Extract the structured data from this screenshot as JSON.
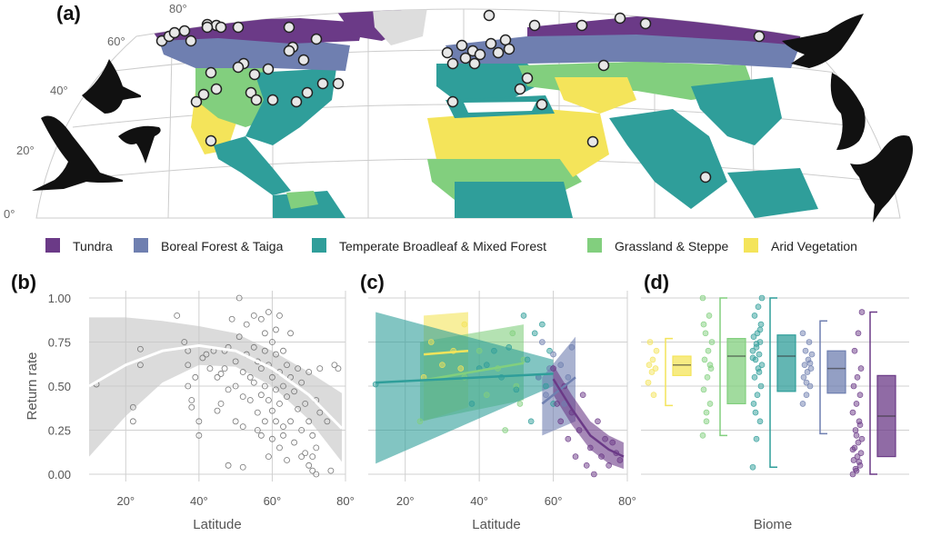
{
  "panels": {
    "a": "(a)",
    "b": "(b)",
    "c": "(c)",
    "d": "(d)"
  },
  "legend": [
    {
      "label": "Tundra",
      "color": "#6b3a87"
    },
    {
      "label": "Boreal Forest & Taiga",
      "color": "#6f7fb0"
    },
    {
      "label": "Temperate Broadleaf & Mixed Forest",
      "color": "#2f9e9a"
    },
    {
      "label": "Grassland & Steppe",
      "color": "#82cf7e"
    },
    {
      "label": "Arid Vegetation",
      "color": "#f4e45a"
    }
  ],
  "map_lat_labels": [
    "80°",
    "60°",
    "40°",
    "20°",
    "0°"
  ],
  "icons": [
    "curlew-silhouette-icon",
    "godwit-silhouette-icon",
    "flying-bird-icon",
    "stilt-silhouette-icon"
  ],
  "chart_data": [
    {
      "panel": "b",
      "type": "scatter",
      "xlabel": "Latitude",
      "ylabel": "Return rate",
      "xlim": [
        10,
        80
      ],
      "ylim": [
        0,
        1
      ],
      "xticks": [
        "20°",
        "40°",
        "60°",
        "80°"
      ],
      "xtick_values": [
        20,
        40,
        60,
        80
      ],
      "yticks": [
        "0.00",
        "0.25",
        "0.50",
        "0.75",
        "1.00"
      ],
      "ytick_values": [
        0,
        0.25,
        0.5,
        0.75,
        1
      ],
      "points": [
        [
          12,
          0.51
        ],
        [
          22,
          0.38
        ],
        [
          22,
          0.3
        ],
        [
          24,
          0.62
        ],
        [
          24,
          0.71
        ],
        [
          34,
          0.9
        ],
        [
          36,
          0.75
        ],
        [
          37,
          0.7
        ],
        [
          37,
          0.62
        ],
        [
          37,
          0.5
        ],
        [
          38,
          0.42
        ],
        [
          38,
          0.38
        ],
        [
          39,
          0.55
        ],
        [
          40,
          0.3
        ],
        [
          40,
          0.22
        ],
        [
          41,
          0.66
        ],
        [
          42,
          0.68
        ],
        [
          43,
          0.6
        ],
        [
          44,
          0.7
        ],
        [
          45,
          0.55
        ],
        [
          46,
          0.4
        ],
        [
          46,
          0.57
        ],
        [
          47,
          0.7
        ],
        [
          47,
          0.6
        ],
        [
          48,
          0.48
        ],
        [
          48,
          0.72
        ],
        [
          49,
          0.88
        ],
        [
          50,
          0.64
        ],
        [
          50,
          0.5
        ],
        [
          51,
          1.0
        ],
        [
          51,
          0.78
        ],
        [
          52,
          0.58
        ],
        [
          52,
          0.44
        ],
        [
          52,
          0.27
        ],
        [
          53,
          0.85
        ],
        [
          53,
          0.68
        ],
        [
          54,
          0.55
        ],
        [
          54,
          0.42
        ],
        [
          55,
          0.9
        ],
        [
          55,
          0.72
        ],
        [
          55,
          0.52
        ],
        [
          56,
          0.64
        ],
        [
          56,
          0.35
        ],
        [
          56,
          0.25
        ],
        [
          57,
          0.88
        ],
        [
          57,
          0.6
        ],
        [
          57,
          0.45
        ],
        [
          58,
          0.8
        ],
        [
          58,
          0.7
        ],
        [
          58,
          0.5
        ],
        [
          58,
          0.3
        ],
        [
          59,
          0.92
        ],
        [
          59,
          0.62
        ],
        [
          59,
          0.42
        ],
        [
          59,
          0.1
        ],
        [
          60,
          0.75
        ],
        [
          60,
          0.55
        ],
        [
          60,
          0.36
        ],
        [
          60,
          0.2
        ],
        [
          61,
          0.82
        ],
        [
          61,
          0.68
        ],
        [
          61,
          0.48
        ],
        [
          61,
          0.3
        ],
        [
          62,
          0.9
        ],
        [
          62,
          0.58
        ],
        [
          62,
          0.4
        ],
        [
          62,
          0.15
        ],
        [
          63,
          0.7
        ],
        [
          63,
          0.5
        ],
        [
          63,
          0.22
        ],
        [
          64,
          0.62
        ],
        [
          64,
          0.44
        ],
        [
          64,
          0.08
        ],
        [
          65,
          0.8
        ],
        [
          65,
          0.55
        ],
        [
          65,
          0.3
        ],
        [
          66,
          0.47
        ],
        [
          66,
          0.18
        ],
        [
          67,
          0.6
        ],
        [
          67,
          0.37
        ],
        [
          68,
          0.52
        ],
        [
          68,
          0.25
        ],
        [
          69,
          0.4
        ],
        [
          69,
          0.12
        ],
        [
          70,
          0.58
        ],
        [
          70,
          0.3
        ],
        [
          70,
          0.05
        ],
        [
          71,
          0.22
        ],
        [
          71,
          0.1
        ],
        [
          71,
          0.02
        ],
        [
          72,
          0.42
        ],
        [
          72,
          0.15
        ],
        [
          72,
          0.0
        ],
        [
          73,
          0.6
        ],
        [
          73,
          0.35
        ],
        [
          75,
          0.3
        ],
        [
          76,
          0.02
        ],
        [
          77,
          0.62
        ],
        [
          78,
          0.6
        ],
        [
          48,
          0.05
        ],
        [
          52,
          0.04
        ],
        [
          57,
          0.22
        ],
        [
          63,
          0.27
        ],
        [
          68,
          0.1
        ],
        [
          50,
          0.3
        ],
        [
          45,
          0.36
        ]
      ],
      "fit": [
        [
          10,
          0.5
        ],
        [
          20,
          0.62
        ],
        [
          30,
          0.7
        ],
        [
          40,
          0.73
        ],
        [
          50,
          0.7
        ],
        [
          60,
          0.6
        ],
        [
          70,
          0.45
        ],
        [
          79,
          0.26
        ]
      ],
      "band_upper": [
        [
          10,
          0.89
        ],
        [
          20,
          0.89
        ],
        [
          30,
          0.87
        ],
        [
          40,
          0.84
        ],
        [
          50,
          0.8
        ],
        [
          60,
          0.7
        ],
        [
          70,
          0.58
        ],
        [
          79,
          0.46
        ]
      ],
      "band_lower": [
        [
          10,
          0.1
        ],
        [
          20,
          0.33
        ],
        [
          30,
          0.52
        ],
        [
          40,
          0.62
        ],
        [
          50,
          0.61
        ],
        [
          60,
          0.5
        ],
        [
          70,
          0.31
        ],
        [
          79,
          0.07
        ]
      ]
    },
    {
      "panel": "c",
      "type": "scatter",
      "xlabel": "Latitude",
      "xlim": [
        10,
        80
      ],
      "ylim": [
        0,
        1
      ],
      "xticks": [
        "20°",
        "40°",
        "60°",
        "80°"
      ],
      "xtick_values": [
        20,
        40,
        60,
        80
      ],
      "series": [
        {
          "color": "#f4e45a",
          "points": [
            [
              25,
              0.55
            ],
            [
              27,
              0.75
            ],
            [
              30,
              0.62
            ],
            [
              33,
              0.7
            ],
            [
              35,
              0.6
            ],
            [
              36,
              0.85
            ]
          ],
          "fit": [
            [
              25,
              0.68
            ],
            [
              37,
              0.7
            ]
          ],
          "band_upper": [
            [
              25,
              0.9
            ],
            [
              37,
              0.92
            ]
          ],
          "band_lower": [
            [
              25,
              0.3
            ],
            [
              37,
              0.38
            ]
          ]
        },
        {
          "color": "#82cf7e",
          "points": [
            [
              24,
              0.3
            ],
            [
              36,
              0.55
            ],
            [
              40,
              0.7
            ],
            [
              42,
              0.45
            ],
            [
              45,
              0.6
            ],
            [
              47,
              0.25
            ],
            [
              49,
              0.8
            ],
            [
              50,
              0.5
            ],
            [
              51,
              0.4
            ],
            [
              52,
              0.65
            ]
          ],
          "fit": [
            [
              24,
              0.53
            ],
            [
              52,
              0.63
            ]
          ],
          "band_upper": [
            [
              24,
              0.75
            ],
            [
              52,
              0.85
            ]
          ],
          "band_lower": [
            [
              24,
              0.3
            ],
            [
              52,
              0.42
            ]
          ]
        },
        {
          "color": "#2f9e9a",
          "points": [
            [
              12,
              0.51
            ],
            [
              38,
              0.4
            ],
            [
              40,
              0.6
            ],
            [
              42,
              0.62
            ],
            [
              44,
              0.7
            ],
            [
              46,
              0.55
            ],
            [
              48,
              0.72
            ],
            [
              50,
              0.48
            ],
            [
              52,
              0.9
            ],
            [
              53,
              0.65
            ],
            [
              54,
              0.3
            ],
            [
              55,
              0.8
            ],
            [
              56,
              0.55
            ],
            [
              57,
              0.85
            ],
            [
              58,
              0.5
            ],
            [
              59,
              0.7
            ],
            [
              60,
              0.4
            ]
          ],
          "fit": [
            [
              12,
              0.52
            ],
            [
              60,
              0.57
            ]
          ],
          "band_upper": [
            [
              12,
              0.92
            ],
            [
              60,
              0.65
            ]
          ],
          "band_lower": [
            [
              12,
              0.06
            ],
            [
              60,
              0.5
            ]
          ]
        },
        {
          "color": "#6f7fb0",
          "points": [
            [
              56,
              0.55
            ],
            [
              57,
              0.75
            ],
            [
              58,
              0.45
            ],
            [
              59,
              0.6
            ],
            [
              60,
              0.68
            ],
            [
              61,
              0.5
            ],
            [
              62,
              0.62
            ],
            [
              63,
              0.4
            ],
            [
              64,
              0.55
            ],
            [
              65,
              0.72
            ]
          ],
          "fit": [
            [
              57,
              0.4
            ],
            [
              66,
              0.55
            ]
          ],
          "band_upper": [
            [
              57,
              0.55
            ],
            [
              66,
              0.78
            ]
          ],
          "band_lower": [
            [
              57,
              0.22
            ],
            [
              66,
              0.3
            ]
          ]
        },
        {
          "color": "#6b3a87",
          "points": [
            [
              60,
              0.6
            ],
            [
              61,
              0.4
            ],
            [
              62,
              0.3
            ],
            [
              63,
              0.5
            ],
            [
              64,
              0.2
            ],
            [
              65,
              0.35
            ],
            [
              66,
              0.1
            ],
            [
              67,
              0.25
            ],
            [
              68,
              0.45
            ],
            [
              69,
              0.05
            ],
            [
              70,
              0.15
            ],
            [
              71,
              0.0
            ],
            [
              72,
              0.3
            ],
            [
              73,
              0.1
            ],
            [
              74,
              0.2
            ],
            [
              75,
              0.05
            ],
            [
              76,
              0.18
            ],
            [
              77,
              0.12
            ],
            [
              78,
              0.08
            ]
          ],
          "fit": [
            [
              60,
              0.54
            ],
            [
              65,
              0.37
            ],
            [
              70,
              0.22
            ],
            [
              75,
              0.14
            ],
            [
              79,
              0.1
            ]
          ],
          "band_upper": [
            [
              60,
              0.62
            ],
            [
              65,
              0.45
            ],
            [
              70,
              0.3
            ],
            [
              75,
              0.22
            ],
            [
              79,
              0.18
            ]
          ],
          "band_lower": [
            [
              60,
              0.45
            ],
            [
              65,
              0.28
            ],
            [
              70,
              0.14
            ],
            [
              75,
              0.06
            ],
            [
              79,
              0.03
            ]
          ]
        }
      ]
    },
    {
      "panel": "d",
      "type": "box",
      "xlabel": "Biome",
      "ylim": [
        0,
        1
      ],
      "boxes": [
        {
          "color": "#f4e45a",
          "q1": 0.56,
          "median": 0.62,
          "q3": 0.67,
          "whisker_low": 0.39,
          "whisker_high": 0.77,
          "points": [
            0.52,
            0.58,
            0.6,
            0.62,
            0.65,
            0.7,
            0.75,
            0.45
          ]
        },
        {
          "color": "#82cf7e",
          "q1": 0.4,
          "median": 0.67,
          "q3": 0.77,
          "whisker_low": 0.22,
          "whisker_high": 1.0,
          "points": [
            0.22,
            0.3,
            0.4,
            0.48,
            0.55,
            0.6,
            0.65,
            0.7,
            0.75,
            0.8,
            0.9,
            1.0,
            0.35,
            0.62,
            0.85
          ]
        },
        {
          "color": "#2f9e9a",
          "q1": 0.47,
          "median": 0.67,
          "q3": 0.79,
          "whisker_low": 0.04,
          "whisker_high": 1.0,
          "points": [
            0.04,
            0.2,
            0.3,
            0.4,
            0.45,
            0.5,
            0.55,
            0.6,
            0.62,
            0.65,
            0.68,
            0.7,
            0.72,
            0.75,
            0.78,
            0.8,
            0.85,
            0.9,
            0.95,
            1.0,
            0.35,
            0.58,
            0.66,
            0.74,
            0.82
          ]
        },
        {
          "color": "#6f7fb0",
          "q1": 0.46,
          "median": 0.6,
          "q3": 0.7,
          "whisker_low": 0.23,
          "whisker_high": 0.87,
          "points": [
            0.4,
            0.45,
            0.5,
            0.55,
            0.58,
            0.6,
            0.62,
            0.65,
            0.68,
            0.7,
            0.75,
            0.8,
            0.52,
            0.63
          ]
        },
        {
          "color": "#6b3a87",
          "q1": 0.1,
          "median": 0.33,
          "q3": 0.56,
          "whisker_low": 0.0,
          "whisker_high": 0.92,
          "points": [
            0.0,
            0.02,
            0.05,
            0.08,
            0.1,
            0.12,
            0.15,
            0.18,
            0.2,
            0.25,
            0.3,
            0.35,
            0.4,
            0.45,
            0.5,
            0.55,
            0.6,
            0.7,
            0.8,
            0.92,
            0.03,
            0.07,
            0.14,
            0.22,
            0.28
          ]
        }
      ]
    }
  ]
}
